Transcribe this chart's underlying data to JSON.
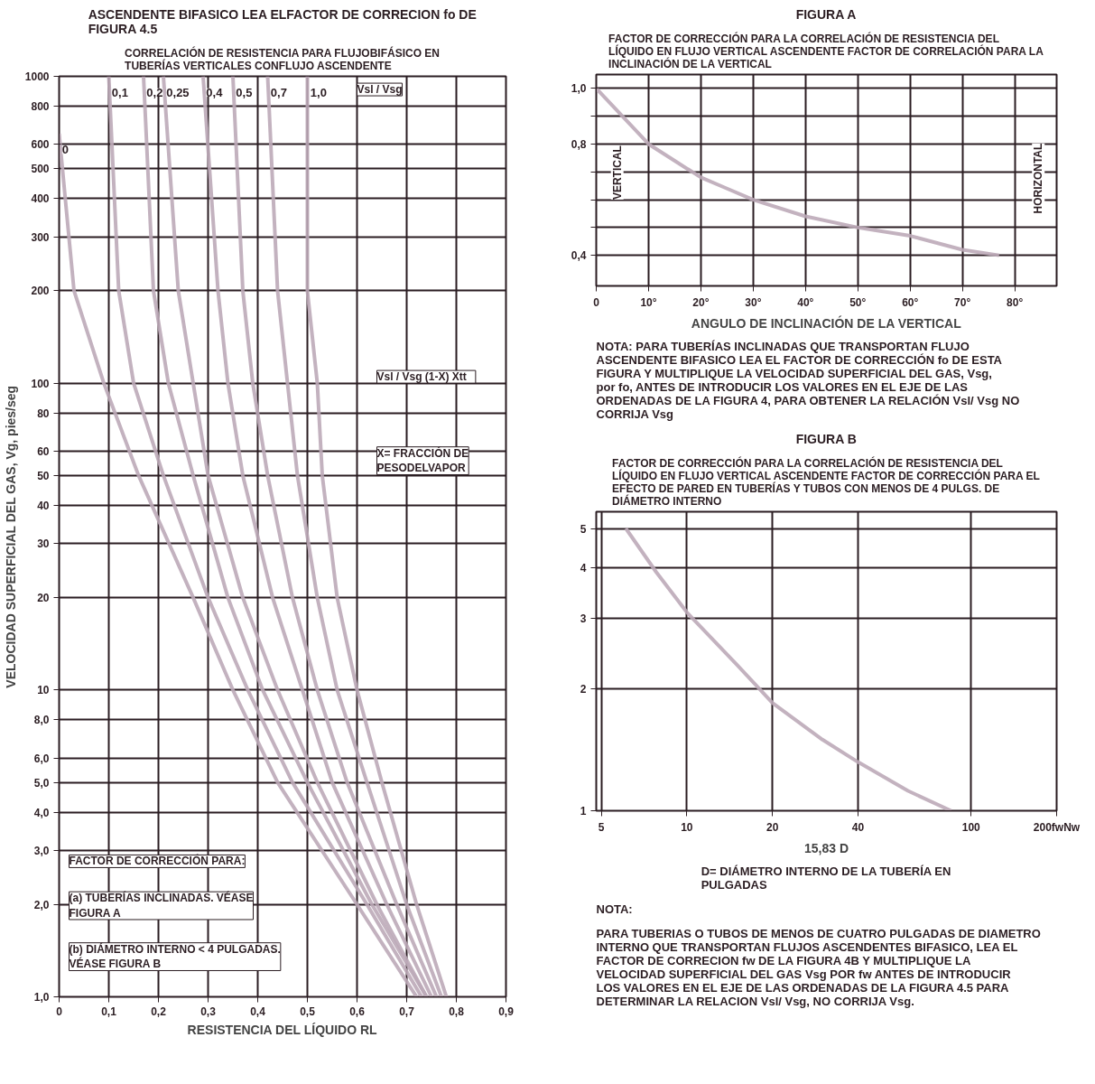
{
  "chart_data": [
    {
      "type": "line",
      "title": "ASCENDENTE BIFASICO LEA ELFACTOR DE CORRECION fo DE FIGURA 4.5",
      "subtitle": "CORRELACIÓN DE RESISTENCIA PARA FLUJOBIFÁSICO EN TUBERÍAS VERTICALES CONFLUJO ASCENDENTE",
      "xlabel": "RESISTENCIA DEL LÍQUIDO RL",
      "ylabel": "VELOCIDAD SUPERFICIAL DEL GAS, Vg, pies/seg",
      "log": "y",
      "grid": true,
      "legend": false,
      "marker": "none",
      "line_style": "solid",
      "xlim": [
        0,
        0.9
      ],
      "ylim": [
        1,
        1000
      ],
      "xticks": [
        0,
        {
          "value": 0.1,
          "label": "0,1"
        },
        {
          "value": 0.2,
          "label": "0,2"
        },
        {
          "value": 0.3,
          "label": "0,3"
        },
        {
          "value": 0.4,
          "label": "0,4"
        },
        {
          "value": 0.5,
          "label": "0,5"
        },
        {
          "value": 0.6,
          "label": "0,6"
        },
        {
          "value": 0.7,
          "label": "0,7"
        },
        {
          "value": 0.8,
          "label": "0,8"
        },
        {
          "value": 0.9,
          "label": "0,9"
        }
      ],
      "yticks": [
        {
          "value": 1,
          "label": "1,0"
        },
        {
          "value": 2,
          "label": "2,0"
        },
        {
          "value": 3,
          "label": "3,0"
        },
        {
          "value": 4,
          "label": "4,0"
        },
        {
          "value": 5,
          "label": "5,0"
        },
        {
          "value": 6,
          "label": "6,0"
        },
        {
          "value": 8,
          "label": "8,0"
        },
        10,
        20,
        30,
        40,
        50,
        60,
        80,
        100,
        200,
        300,
        400,
        500,
        600,
        800,
        1000
      ],
      "series": [
        {
          "name": "0",
          "color": "#bcaab8",
          "x": [
            0.0,
            0.03,
            0.09,
            0.16,
            0.27,
            0.35,
            0.44,
            0.6,
            0.72
          ],
          "values": [
            650,
            200,
            100,
            50,
            20,
            10,
            5,
            2,
            1
          ]
        },
        {
          "name": "0,1",
          "color": "#bcaab8",
          "x": [
            0.1,
            0.12,
            0.15,
            0.21,
            0.3,
            0.38,
            0.47,
            0.62,
            0.73
          ],
          "values": [
            1000,
            200,
            100,
            50,
            20,
            10,
            5,
            2,
            1
          ]
        },
        {
          "name": "0,2",
          "color": "#bcaab8",
          "x": [
            0.17,
            0.19,
            0.22,
            0.27,
            0.34,
            0.41,
            0.5,
            0.63,
            0.74
          ],
          "values": [
            1000,
            200,
            100,
            50,
            20,
            10,
            5,
            2,
            1
          ]
        },
        {
          "name": "0,25",
          "color": "#bcaab8",
          "x": [
            0.21,
            0.24,
            0.27,
            0.3,
            0.37,
            0.44,
            0.52,
            0.64,
            0.74
          ],
          "values": [
            1000,
            200,
            100,
            50,
            20,
            10,
            5,
            2,
            1
          ]
        },
        {
          "name": "0,4",
          "color": "#bcaab8",
          "x": [
            0.29,
            0.32,
            0.34,
            0.37,
            0.43,
            0.49,
            0.55,
            0.66,
            0.75
          ],
          "values": [
            1000,
            200,
            100,
            50,
            20,
            10,
            5,
            2,
            1
          ]
        },
        {
          "name": "0,5",
          "color": "#bcaab8",
          "x": [
            0.35,
            0.37,
            0.39,
            0.42,
            0.47,
            0.52,
            0.58,
            0.68,
            0.76
          ],
          "values": [
            1000,
            200,
            100,
            50,
            20,
            10,
            5,
            2,
            1
          ]
        },
        {
          "name": "0,7",
          "color": "#bcaab8",
          "x": [
            0.42,
            0.44,
            0.46,
            0.48,
            0.52,
            0.56,
            0.62,
            0.7,
            0.77
          ],
          "values": [
            1000,
            200,
            100,
            50,
            20,
            10,
            5,
            2,
            1
          ]
        },
        {
          "name": "1,0",
          "color": "#bcaab8",
          "x": [
            0.5,
            0.5,
            0.52,
            0.53,
            0.56,
            0.6,
            0.65,
            0.72,
            0.78
          ],
          "values": [
            1000,
            200,
            100,
            50,
            20,
            10,
            5,
            2,
            1
          ]
        }
      ],
      "annotations": [
        "Vsl / Vsg",
        "Vsl / Vsg    (1-X) Xtt",
        "X= FRACCIÓN DE PESODELVAPOR",
        "FACTOR DE CORRECCIÓN PARA:",
        "(a) TUBERÍAS INCLINADAS. VÉASE FIGURA A",
        "(b) DIÁMETRO INTERNO < 4 PULGADAS. VÉASE FIGURA B"
      ]
    },
    {
      "type": "line",
      "title": "FIGURA A",
      "subtitle": "FACTOR DE CORRECCIÓN PARA LA CORRELACIÓN DE RESISTENCIA DEL LÍQUIDO EN FLUJO VERTICAL ASCENDENTE FACTOR DE CORRELACIÓN PARA LA INCLINACIÓN DE LA VERTICAL",
      "xlabel": "ANGULO DE INCLINACIÓN DE LA VERTICAL",
      "grid": true,
      "legend": false,
      "marker": "none",
      "line_style": "solid",
      "xlim": [
        0,
        88
      ],
      "ylim": [
        0.29,
        1.05
      ],
      "xticks": [
        0,
        {
          "value": 10,
          "label": "10°"
        },
        {
          "value": 20,
          "label": "20°"
        },
        {
          "value": 30,
          "label": "30°"
        },
        {
          "value": 40,
          "label": "40°"
        },
        {
          "value": 50,
          "label": "50°"
        },
        {
          "value": 60,
          "label": "60°"
        },
        {
          "value": 70,
          "label": "70°"
        },
        {
          "value": 80,
          "label": "80°"
        }
      ],
      "yticks": [
        {
          "value": 0.4,
          "label": "0,4"
        },
        {
          "value": 0.5,
          "label": null
        },
        {
          "value": 0.6,
          "label": null
        },
        {
          "value": 0.7,
          "label": null
        },
        {
          "value": 0.8,
          "label": "0,8"
        },
        {
          "value": 0.9,
          "label": null
        },
        {
          "value": 1.0,
          "label": "1,0"
        }
      ],
      "series": [
        {
          "color": "#bcaab8",
          "x": [
            0,
            5,
            10,
            15,
            20,
            25,
            30,
            40,
            50,
            60,
            70,
            77
          ],
          "values": [
            1.0,
            0.9,
            0.8,
            0.74,
            0.68,
            0.64,
            0.6,
            0.54,
            0.5,
            0.47,
            0.42,
            0.4
          ]
        }
      ],
      "annotations": [
        "VERTICAL",
        "HORIZONTAL",
        "NOTA: PARA TUBERÍAS INCLINADAS QUE TRANSPORTAN FLUJO ASCENDENTE BIFASICO LEA EL FACTOR DE CORRECCIÓN fo DE ESTA FIGURA Y MULTIPLIQUE LA VELOCIDAD SUPERFICIAL DEL GAS, Vsg, por fo, ANTES DE INTRODUCIR LOS VALORES EN EL EJE DE LAS ORDENADAS DE LA FIGURA 4, PARA OBTENER LA RELACIÓN Vsl/ Vsg NO CORRIJA Vsg"
      ]
    },
    {
      "type": "line",
      "title": "FIGURA B",
      "subtitle": "FACTOR DE CORRECCIÓN PARA LA CORRELACIÓN DE RESISTENCIA DEL LÍQUIDO EN FLUJO VERTICAL ASCENDENTE FACTOR DE CORRECCIÓN PARA EL EFECTO DE PARED EN TUBERÍAS Y TUBOS CON MENOS DE 4 PULGS. DE DIÁMETRO INTERNO",
      "xlabel": "15,83 D",
      "log": "xy",
      "grid": true,
      "legend": false,
      "marker": "none",
      "line_style": "solid",
      "xlim": [
        4.8,
        200
      ],
      "ylim": [
        1,
        5.5
      ],
      "xticks": [
        5,
        10,
        20,
        40,
        100,
        {
          "value": 200,
          "label": "200fwNw"
        }
      ],
      "yticks": [
        1,
        2,
        3,
        4,
        5
      ],
      "series": [
        {
          "color": "#bcaab8",
          "x": [
            6.1,
            7.8,
            10,
            15,
            20,
            30,
            40,
            60,
            85
          ],
          "values": [
            5.0,
            3.9,
            3.1,
            2.3,
            1.85,
            1.5,
            1.32,
            1.12,
            1.0
          ]
        }
      ],
      "annotations": [
        "D= DIÁMETRO INTERNO DE LA TUBERÍA EN PULGADAS",
        "NOTA:",
        "PARA TUBERIAS O TUBOS DE MENOS DE CUATRO PULGADAS DE DIAMETRO INTERNO QUE TRANSPORTAN FLUJOS ASCENDENTES BIFASICO, LEA EL FACTOR DE CORRECION fw DE LA FIGURA 4B Y MULTIPLIQUE LA VELOCIDAD SUPERFICIAL DEL GAS Vsg POR fw ANTES DE INTRODUCIR LOS VALORES EN EL EJE DE LAS ORDENADAS DE LA FIGURA 4.5 PARA DETERMINAR LA RELACION Vsl/ Vsg, NO CORRIJA Vsg."
      ]
    }
  ]
}
